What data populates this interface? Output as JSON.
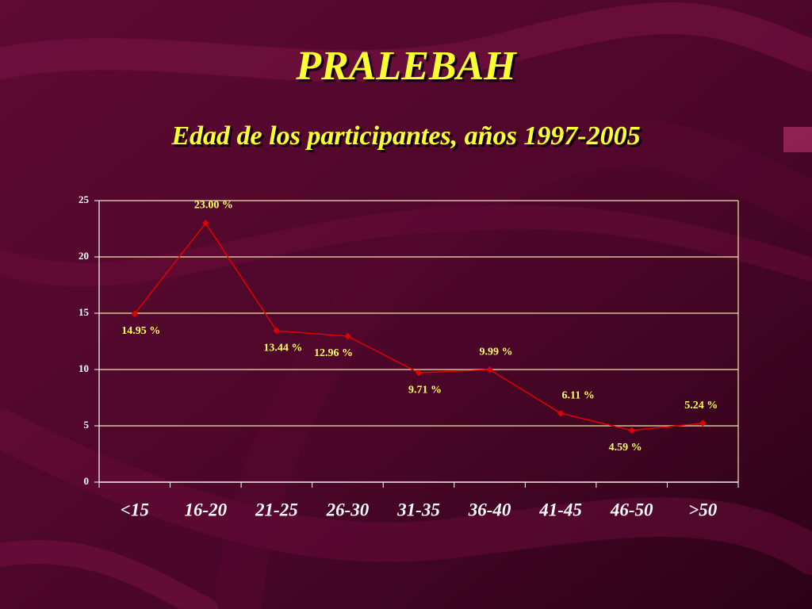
{
  "chart_data": {
    "type": "line",
    "title": "PRALEBAH",
    "subtitle": "Edad de los participantes,  años 1997-2005",
    "categories": [
      "<15",
      "16-20",
      "21-25",
      "26-30",
      "31-35",
      "36-40",
      "41-45",
      "46-50",
      ">50"
    ],
    "values": [
      14.95,
      23.0,
      13.44,
      12.96,
      9.71,
      9.99,
      6.11,
      4.59,
      5.24
    ],
    "value_labels": [
      "14.95 %",
      "23.00 %",
      "13.44 %",
      "12.96 %",
      "9.71 %",
      "9.99 %",
      "6.11 %",
      "4.59 %",
      "5.24 %"
    ],
    "color": "#e00000",
    "ylim": [
      0,
      25
    ],
    "yticks": [
      0,
      5,
      10,
      15,
      20,
      25
    ],
    "grid": true
  }
}
